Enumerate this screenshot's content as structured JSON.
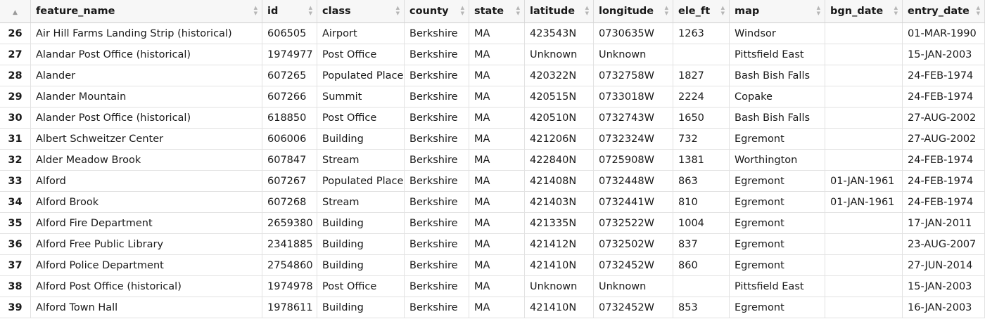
{
  "table": {
    "sort_indicator": "▲",
    "columns": [
      "feature_name",
      "id",
      "class",
      "county",
      "state",
      "latitude",
      "longitude",
      "ele_ft",
      "map",
      "bgn_date",
      "entry_date"
    ],
    "rows": [
      [
        "26",
        "Air Hill Farms Landing Strip (historical)",
        "606505",
        "Airport",
        "Berkshire",
        "MA",
        "423543N",
        "0730635W",
        "1263",
        "Windsor",
        "",
        "01-MAR-1990"
      ],
      [
        "27",
        "Alandar Post Office (historical)",
        "1974977",
        "Post Office",
        "Berkshire",
        "MA",
        "Unknown",
        "Unknown",
        "",
        "Pittsfield East",
        "",
        "15-JAN-2003"
      ],
      [
        "28",
        "Alander",
        "607265",
        "Populated Place",
        "Berkshire",
        "MA",
        "420322N",
        "0732758W",
        "1827",
        "Bash Bish Falls",
        "",
        "24-FEB-1974"
      ],
      [
        "29",
        "Alander Mountain",
        "607266",
        "Summit",
        "Berkshire",
        "MA",
        "420515N",
        "0733018W",
        "2224",
        "Copake",
        "",
        "24-FEB-1974"
      ],
      [
        "30",
        "Alander Post Office (historical)",
        "618850",
        "Post Office",
        "Berkshire",
        "MA",
        "420510N",
        "0732743W",
        "1650",
        "Bash Bish Falls",
        "",
        "27-AUG-2002"
      ],
      [
        "31",
        "Albert Schweitzer Center",
        "606006",
        "Building",
        "Berkshire",
        "MA",
        "421206N",
        "0732324W",
        "732",
        "Egremont",
        "",
        "27-AUG-2002"
      ],
      [
        "32",
        "Alder Meadow Brook",
        "607847",
        "Stream",
        "Berkshire",
        "MA",
        "422840N",
        "0725908W",
        "1381",
        "Worthington",
        "",
        "24-FEB-1974"
      ],
      [
        "33",
        "Alford",
        "607267",
        "Populated Place",
        "Berkshire",
        "MA",
        "421408N",
        "0732448W",
        "863",
        "Egremont",
        "01-JAN-1961",
        "24-FEB-1974"
      ],
      [
        "34",
        "Alford Brook",
        "607268",
        "Stream",
        "Berkshire",
        "MA",
        "421403N",
        "0732441W",
        "810",
        "Egremont",
        "01-JAN-1961",
        "24-FEB-1974"
      ],
      [
        "35",
        "Alford Fire Department",
        "2659380",
        "Building",
        "Berkshire",
        "MA",
        "421335N",
        "0732522W",
        "1004",
        "Egremont",
        "",
        "17-JAN-2011"
      ],
      [
        "36",
        "Alford Free Public Library",
        "2341885",
        "Building",
        "Berkshire",
        "MA",
        "421412N",
        "0732502W",
        "837",
        "Egremont",
        "",
        "23-AUG-2007"
      ],
      [
        "37",
        "Alford Police Department",
        "2754860",
        "Building",
        "Berkshire",
        "MA",
        "421410N",
        "0732452W",
        "860",
        "Egremont",
        "",
        "27-JUN-2014"
      ],
      [
        "38",
        "Alford Post Office (historical)",
        "1974978",
        "Post Office",
        "Berkshire",
        "MA",
        "Unknown",
        "Unknown",
        "",
        "Pittsfield East",
        "",
        "15-JAN-2003"
      ],
      [
        "39",
        "Alford Town Hall",
        "1978611",
        "Building",
        "Berkshire",
        "MA",
        "421410N",
        "0732452W",
        "853",
        "Egremont",
        "",
        "16-JAN-2003"
      ]
    ]
  }
}
